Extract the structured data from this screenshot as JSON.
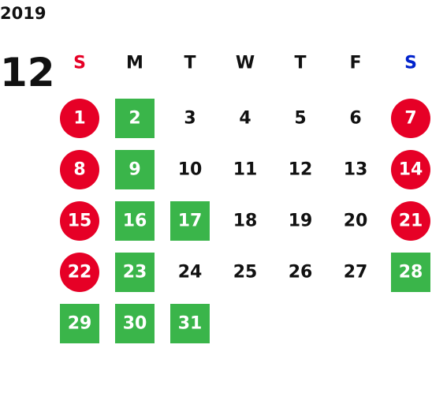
{
  "year": "2019",
  "month": "12",
  "weekdays": [
    {
      "label": "S",
      "color": "#e60026"
    },
    {
      "label": "M",
      "color": "#111111"
    },
    {
      "label": "T",
      "color": "#111111"
    },
    {
      "label": "W",
      "color": "#111111"
    },
    {
      "label": "T",
      "color": "#111111"
    },
    {
      "label": "F",
      "color": "#111111"
    },
    {
      "label": "S",
      "color": "#0022cc"
    }
  ],
  "weeks": [
    [
      {
        "day": 1,
        "shape": "circle",
        "color": "#e60026"
      },
      {
        "day": 2,
        "shape": "square",
        "color": "#3ab54a"
      },
      {
        "day": 3
      },
      {
        "day": 4
      },
      {
        "day": 5
      },
      {
        "day": 6
      },
      {
        "day": 7,
        "shape": "circle",
        "color": "#e60026"
      }
    ],
    [
      {
        "day": 8,
        "shape": "circle",
        "color": "#e60026"
      },
      {
        "day": 9,
        "shape": "square",
        "color": "#3ab54a"
      },
      {
        "day": 10
      },
      {
        "day": 11
      },
      {
        "day": 12
      },
      {
        "day": 13
      },
      {
        "day": 14,
        "shape": "circle",
        "color": "#e60026"
      }
    ],
    [
      {
        "day": 15,
        "shape": "circle",
        "color": "#e60026"
      },
      {
        "day": 16,
        "shape": "square",
        "color": "#3ab54a"
      },
      {
        "day": 17,
        "shape": "square",
        "color": "#3ab54a"
      },
      {
        "day": 18
      },
      {
        "day": 19
      },
      {
        "day": 20
      },
      {
        "day": 21,
        "shape": "circle",
        "color": "#e60026"
      }
    ],
    [
      {
        "day": 22,
        "shape": "circle",
        "color": "#e60026"
      },
      {
        "day": 23,
        "shape": "square",
        "color": "#3ab54a"
      },
      {
        "day": 24
      },
      {
        "day": 25
      },
      {
        "day": 26
      },
      {
        "day": 27
      },
      {
        "day": 28,
        "shape": "square",
        "color": "#3ab54a"
      }
    ],
    [
      {
        "day": 29,
        "shape": "square",
        "color": "#3ab54a"
      },
      {
        "day": 30,
        "shape": "square",
        "color": "#3ab54a"
      },
      {
        "day": 31,
        "shape": "square",
        "color": "#3ab54a"
      }
    ]
  ]
}
